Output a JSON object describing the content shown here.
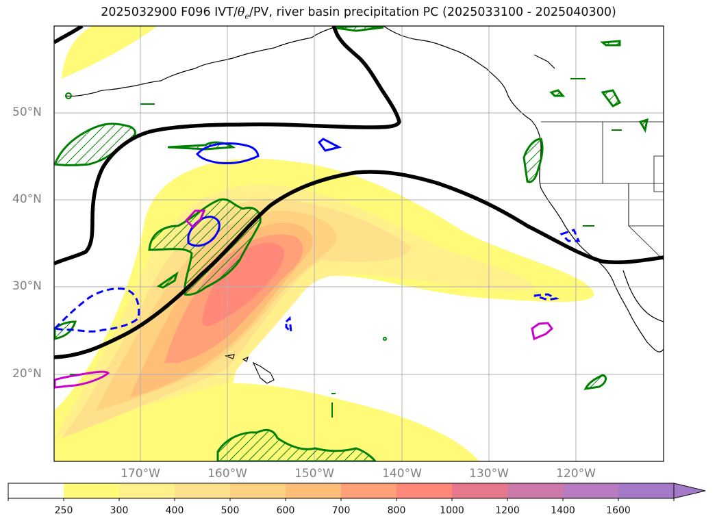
{
  "title_prefix": "2025032900 F096 IVT/",
  "title_theta": "θ",
  "title_theta_sub": "e",
  "title_suffix": "/PV, river basin precipitation PC (2025033100 - 2025040300)",
  "lat_labels": [
    "50°N",
    "40°N",
    "30°N",
    "20°N"
  ],
  "lon_labels": [
    "170°W",
    "160°W",
    "150°W",
    "140°W",
    "130°W",
    "120°W"
  ],
  "colorbar": {
    "ticks": [
      "250",
      "300",
      "400",
      "500",
      "600",
      "700",
      "800",
      "1000",
      "1200",
      "1400",
      "1600"
    ],
    "colors": [
      "#ffffff",
      "#fffa78",
      "#fff08c",
      "#ffe18c",
      "#ffd282",
      "#ffbe78",
      "#ffa078",
      "#ff8878",
      "#e8788c",
      "#cc78a8",
      "#b87ac0",
      "#a47ac8"
    ],
    "extend": "max"
  },
  "legend_colors": {
    "theta_e_line": "#000000",
    "pv_positive": "#0000ff",
    "pv_negative": "#cc00cc",
    "precip_pc": "#008000"
  }
}
